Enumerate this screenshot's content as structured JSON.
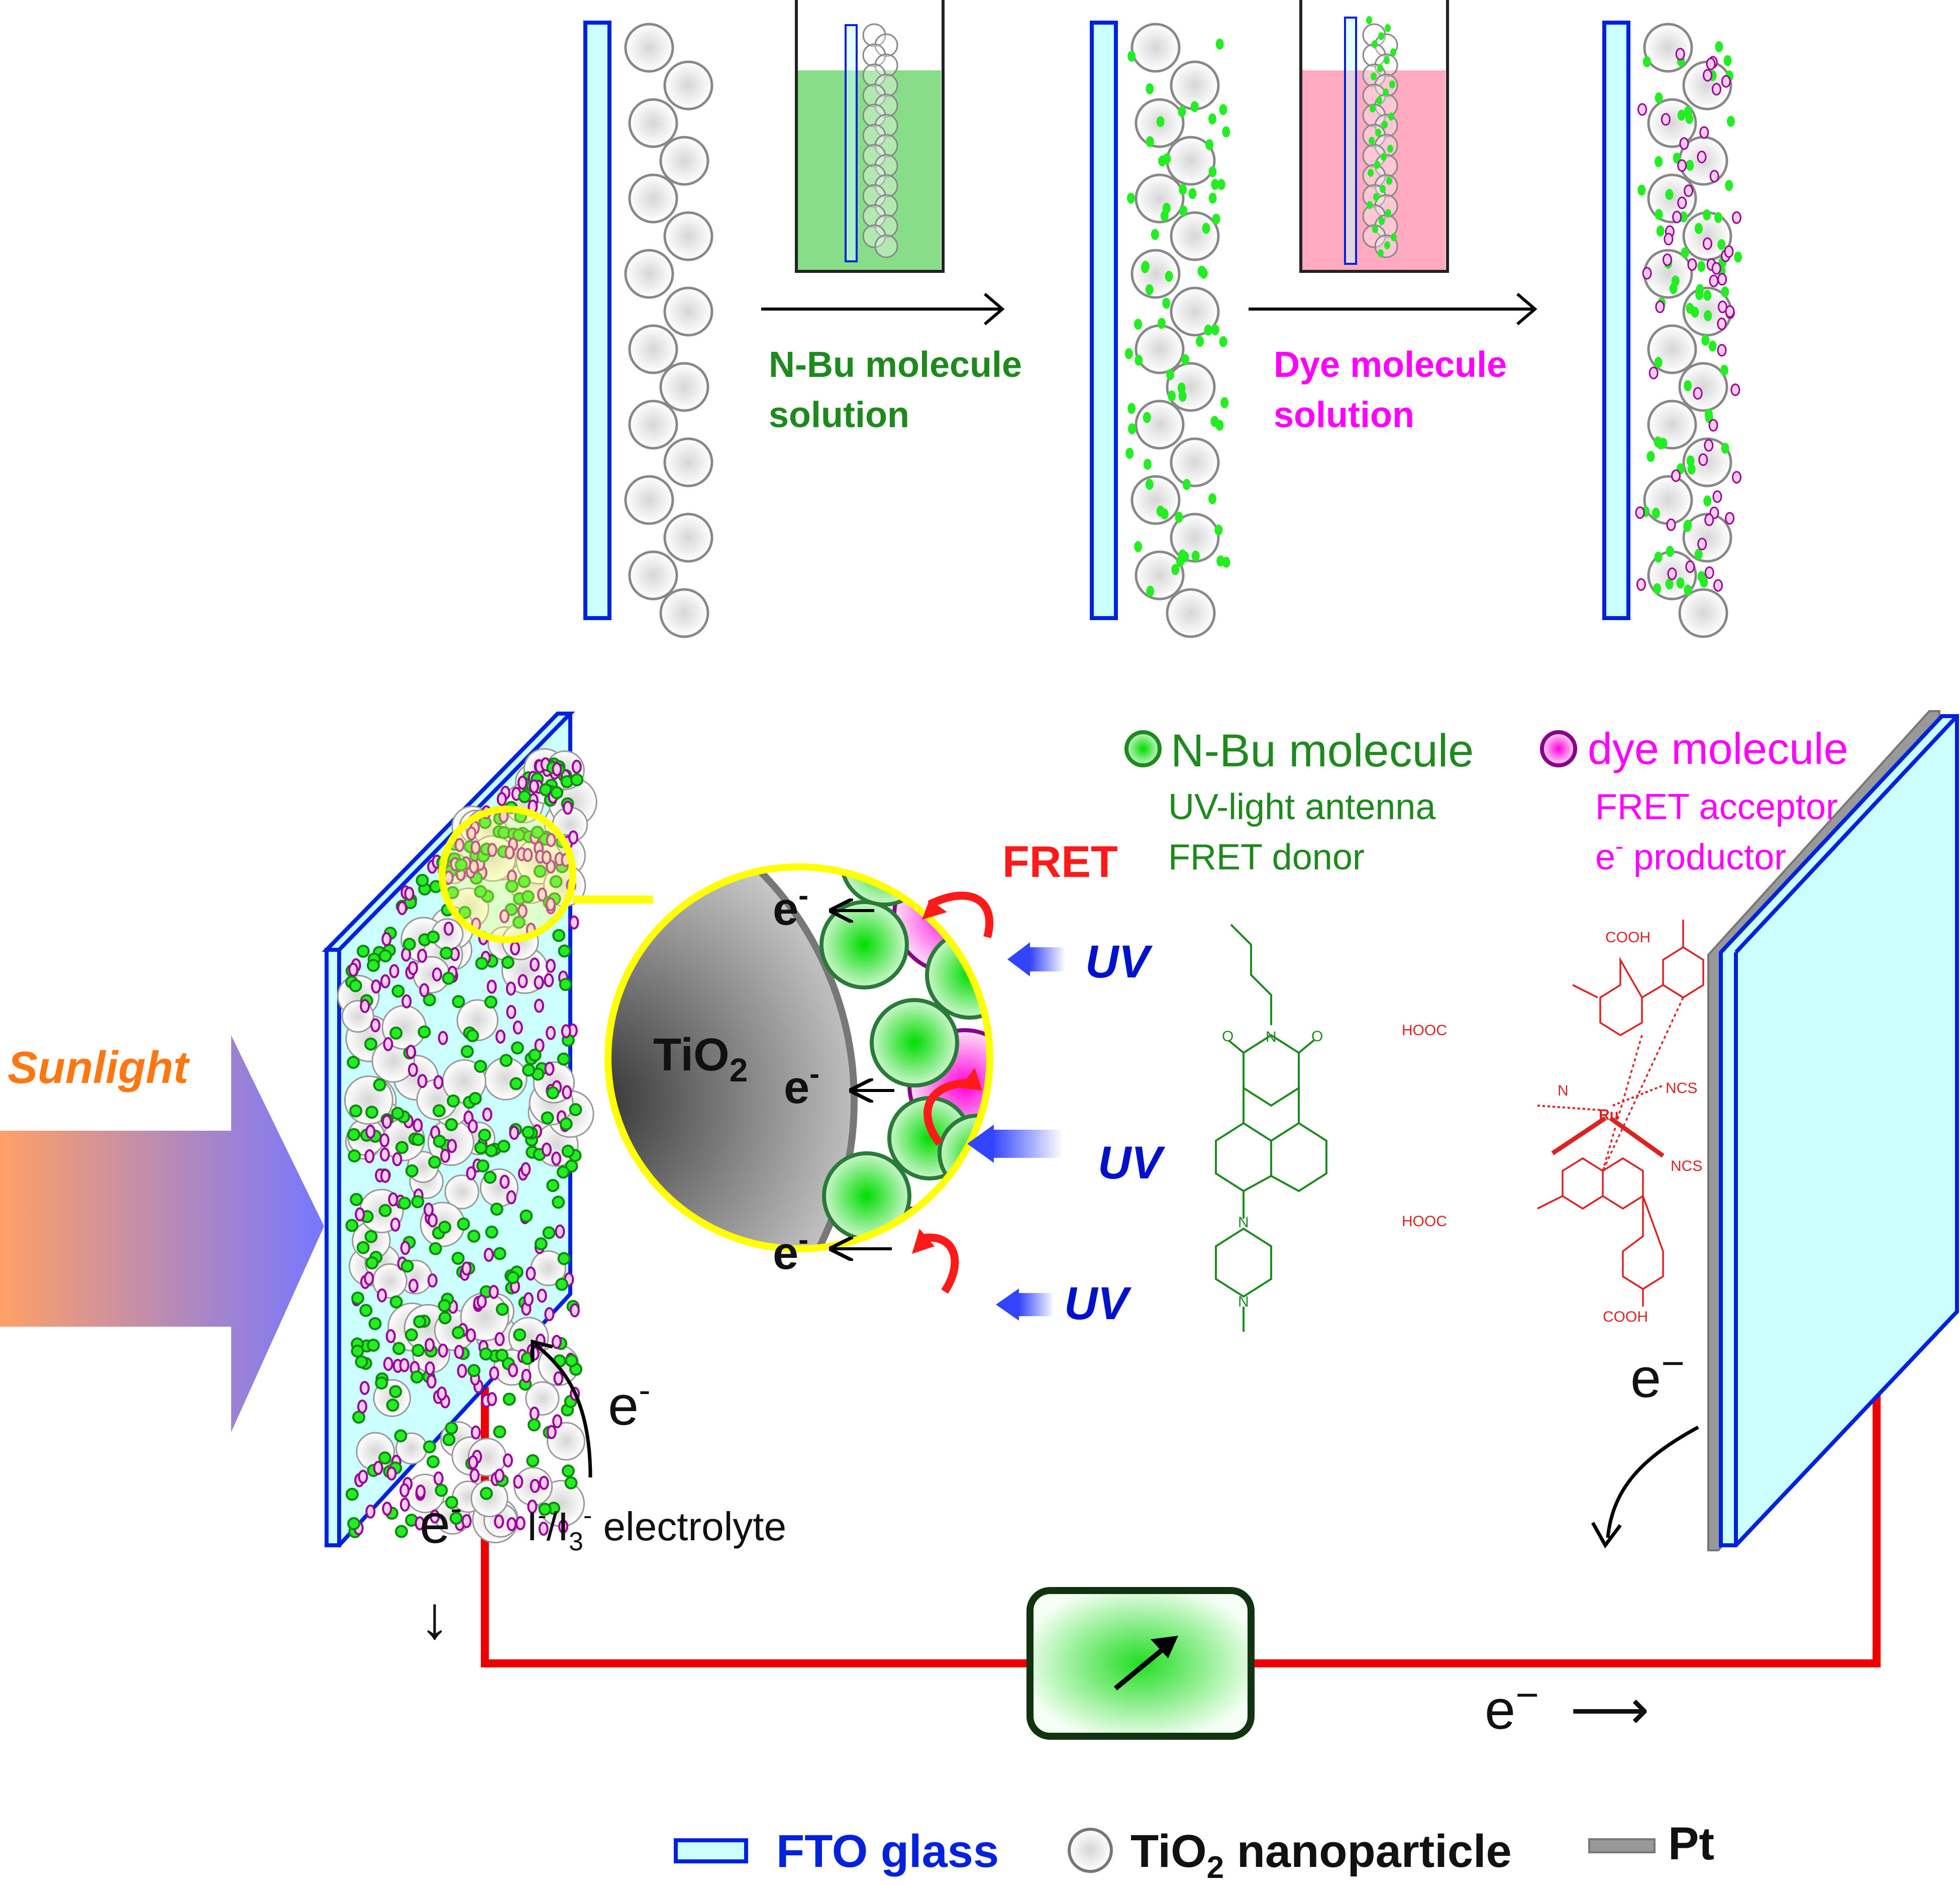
{
  "steps": {
    "step1_label_line1": "N-Bu molecule",
    "step1_label_line2": "solution",
    "step2_label_line1": "Dye molecule",
    "step2_label_line2": "solution"
  },
  "inset": {
    "tio2_main": "TiO",
    "tio2_sub": "2",
    "fret": "FRET",
    "uv": "UV",
    "e_symbol": "e",
    "e_sup": "-"
  },
  "legend_top": {
    "nbu_title": "N-Bu molecule",
    "nbu_line1": "UV-light antenna",
    "nbu_line2": "FRET donor",
    "dye_title": "dye molecule",
    "dye_line1": "FRET acceptor",
    "dye_line2_e": "e",
    "dye_line2_sup": "-",
    "dye_line2_rest": " productor"
  },
  "structures": {
    "nbu_atom_o1": "O",
    "nbu_atom_n": "N",
    "nbu_atom_o2": "O",
    "nbu_atom_n2": "N",
    "nbu_atom_n3": "N",
    "dye_cooh_top": "COOH",
    "dye_hooc_left1": "HOOC",
    "dye_hooc_left2": "HOOC",
    "dye_cooh_bottom": "COOH",
    "dye_ru": "Ru",
    "dye_ncs1": "NCS",
    "dye_ncs2": "NCS",
    "dye_n": "N"
  },
  "cell": {
    "sunlight": "Sunlight",
    "electrolyte_i": "I",
    "electrolyte_sup1": "-",
    "electrolyte_slash": "/I",
    "electrolyte_sub": "3",
    "electrolyte_sup2": "-",
    "electrolyte_rest": " electrolyte",
    "e_minus_dash": "e",
    "e_minus_long": "−",
    "arrow_right": "⟶",
    "arrow_down": "↓"
  },
  "legend_bottom": {
    "fto": "FTO glass",
    "tio2_main": "TiO",
    "tio2_sub": "2",
    "tio2_rest": " nanoparticle",
    "pt": "Pt"
  },
  "colors": {
    "fto_fill": "#ccffff",
    "fto_stroke": "#0022dd",
    "particle_stroke": "#777777",
    "nbu_green": "#1e8a1e",
    "dye_magenta": "#ff00ff",
    "circuit_red": "#ee0000",
    "uv_blue": "#0011cc",
    "fret_red": "#ff1a1a",
    "sunlight_orange": "#ff7711",
    "inset_yellow": "#ffff00",
    "green_solution": "#88dd88",
    "pink_solution": "#ffaac0"
  }
}
